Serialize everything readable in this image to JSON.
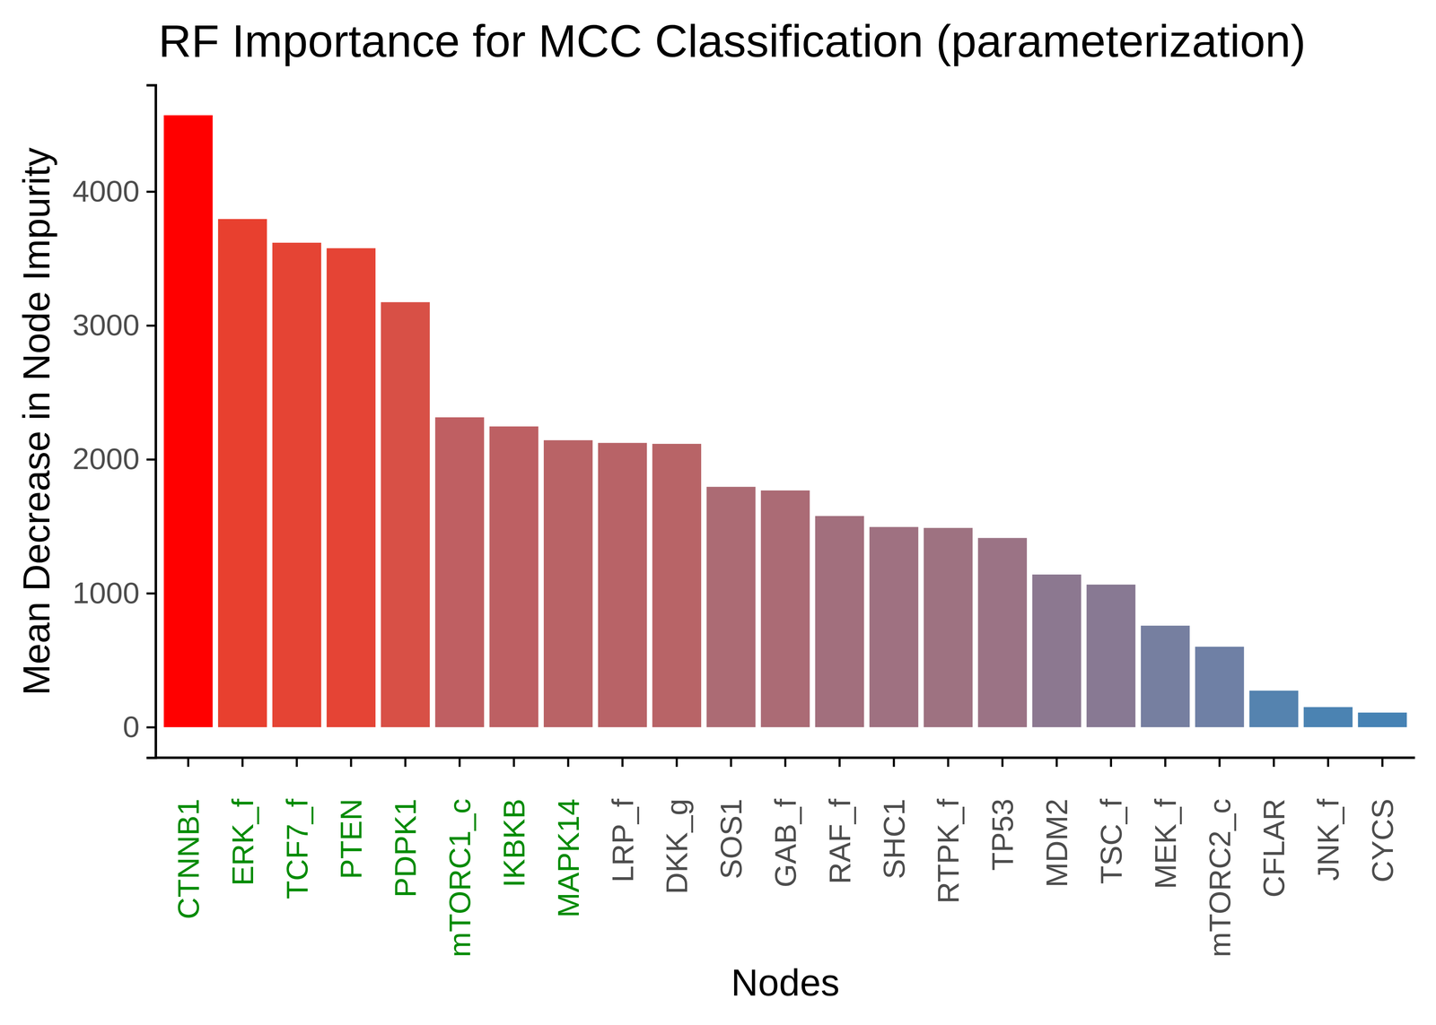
{
  "chart_data": {
    "type": "bar",
    "title": "RF Importance for MCC Classification (parameterization)",
    "x_label": "Nodes",
    "y_label": "Mean Decrease in Node Impurity",
    "categories": [
      "CTNNB1",
      "ERK_f",
      "TCF7_f",
      "PTEN",
      "PDPK1",
      "mTORC1_c",
      "IKBKB",
      "MAPK14",
      "LRP_f",
      "DKK_g",
      "SOS1",
      "GAB_f",
      "RAF_f",
      "SHC1",
      "RTPK_f",
      "TP53",
      "MDM2",
      "TSC_f",
      "MEK_f",
      "mTORC2_c",
      "CFLAR",
      "JNK_f",
      "CYCS"
    ],
    "values": [
      4570,
      3795,
      3618,
      3577,
      3174,
      2314,
      2246,
      2143,
      2123,
      2116,
      1795,
      1768,
      1577,
      1495,
      1488,
      1413,
      1140,
      1065,
      758,
      601,
      273,
      150,
      109
    ],
    "colors": [
      "#FF0000",
      "#E8402F",
      "#E54434",
      "#E54435",
      "#D85046",
      "#BF5F62",
      "#BD6063",
      "#B96366",
      "#B86367",
      "#B86467",
      "#AC6B74",
      "#AB6B75",
      "#A26F7D",
      "#9F7181",
      "#9E7281",
      "#9B7385",
      "#8C7890",
      "#887993",
      "#767FA0",
      "#6F80A5",
      "#5583AF",
      "#4B83B2",
      "#4682B4"
    ],
    "ylim": [
      -228,
      4795
    ],
    "yticks": [
      0,
      1000,
      2000,
      3000,
      4000
    ],
    "grid": false
  }
}
